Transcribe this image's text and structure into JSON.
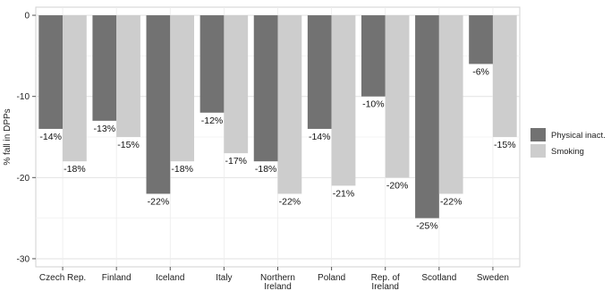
{
  "chart_data": {
    "type": "bar",
    "categories": [
      [
        "Czech Rep."
      ],
      [
        "Finland"
      ],
      [
        "Iceland"
      ],
      [
        "Italy"
      ],
      [
        "Northern",
        "Ireland"
      ],
      [
        "Poland"
      ],
      [
        "Rep. of",
        "Ireland"
      ],
      [
        "Scotland"
      ],
      [
        "Sweden"
      ]
    ],
    "series": [
      {
        "name": "Physical inact.",
        "color": "#727272",
        "values": [
          -14,
          -13,
          -22,
          -12,
          -18,
          -14,
          -10,
          -25,
          -6
        ],
        "labels": [
          "-14%",
          "-13%",
          "-22%",
          "-12%",
          "-18%",
          "-14%",
          "-10%",
          "-25%",
          "-6%"
        ]
      },
      {
        "name": "Smoking",
        "color": "#cdcdcd",
        "values": [
          -18,
          -15,
          -18,
          -17,
          -22,
          -21,
          -20,
          -22,
          -15
        ],
        "labels": [
          "-18%",
          "-15%",
          "-18%",
          "-17%",
          "-22%",
          "-21%",
          "-20%",
          "-22%",
          "-15%"
        ]
      }
    ],
    "ylabel": "% fall in DPPs",
    "xlabel": "",
    "title": "",
    "ylim": [
      -31,
      1
    ],
    "yticks": [
      0,
      -10,
      -20,
      -30
    ],
    "ytick_labels": [
      "0",
      "-10",
      "-20",
      "-30"
    ],
    "grid": true,
    "legend_position": "right"
  }
}
